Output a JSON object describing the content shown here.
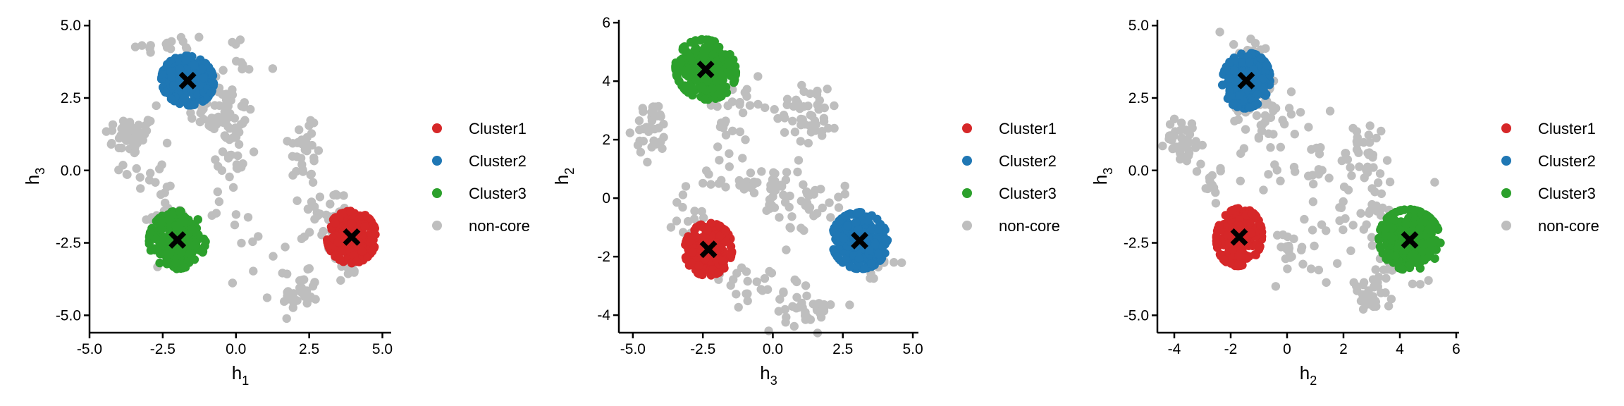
{
  "colors": {
    "Cluster1": "#d62728",
    "Cluster2": "#1f77b4",
    "Cluster3": "#2ca02c",
    "non-core": "#bebebe",
    "centroid": "#000000"
  },
  "chart_data": [
    {
      "type": "scatter",
      "xlabel": {
        "main": "h",
        "sub": "1"
      },
      "ylabel": {
        "main": "h",
        "sub": "3"
      },
      "xlim": [
        -5.0,
        5.3
      ],
      "ylim": [
        -5.6,
        5.2
      ],
      "xticks": [
        -5.0,
        -2.5,
        0.0,
        2.5,
        5.0
      ],
      "xtick_labels": [
        "-5.0",
        "-2.5",
        "0.0",
        "2.5",
        "5.0"
      ],
      "yticks": [
        -5.0,
        -2.5,
        0.0,
        2.5,
        5.0
      ],
      "ytick_labels": [
        "-5.0",
        "-2.5",
        "0.0",
        "2.5",
        "5.0"
      ],
      "legend": [
        "Cluster1",
        "Cluster2",
        "Cluster3",
        "non-core"
      ],
      "legend_position": "right",
      "clusters": [
        {
          "name": "Cluster1",
          "center": [
            3.95,
            -2.3
          ],
          "spread": [
            0.42,
            0.45
          ],
          "angle": 0,
          "n": 230
        },
        {
          "name": "Cluster2",
          "center": [
            -1.65,
            3.1
          ],
          "spread": [
            0.45,
            0.42
          ],
          "angle": -25,
          "n": 260
        },
        {
          "name": "Cluster3",
          "center": [
            -2.0,
            -2.4
          ],
          "spread": [
            0.48,
            0.5
          ],
          "angle": -20,
          "n": 280
        }
      ],
      "centroids": [
        [
          3.95,
          -2.3
        ],
        [
          -1.65,
          3.1
        ],
        [
          -2.0,
          -2.4
        ]
      ],
      "noncore_regions": [
        {
          "center": [
            -3.6,
            1.2
          ],
          "spread": [
            0.45,
            0.35
          ],
          "n": 45
        },
        {
          "center": [
            -0.5,
            2.0
          ],
          "spread": [
            0.55,
            0.5
          ],
          "n": 55
        },
        {
          "center": [
            -0.2,
            0.5
          ],
          "spread": [
            0.35,
            0.9
          ],
          "n": 30
        },
        {
          "center": [
            2.4,
            0.8
          ],
          "spread": [
            0.3,
            0.7
          ],
          "n": 30
        },
        {
          "center": [
            3.2,
            -1.5
          ],
          "spread": [
            0.45,
            0.45
          ],
          "n": 30
        },
        {
          "center": [
            2.2,
            -4.3
          ],
          "spread": [
            0.3,
            0.35
          ],
          "n": 30
        },
        {
          "center": [
            -2.6,
            -1.5
          ],
          "spread": [
            0.4,
            0.4
          ],
          "n": 20
        },
        {
          "center": [
            0.3,
            -2.5
          ],
          "spread": [
            1.2,
            1.0
          ],
          "n": 25
        },
        {
          "center": [
            -2.2,
            4.3
          ],
          "spread": [
            0.6,
            0.3
          ],
          "n": 15
        },
        {
          "center": [
            -3.0,
            0.0
          ],
          "spread": [
            0.4,
            0.4
          ],
          "n": 12
        },
        {
          "center": [
            0.0,
            3.5
          ],
          "spread": [
            0.6,
            0.5
          ],
          "n": 12
        },
        {
          "center": [
            3.8,
            -3.1
          ],
          "spread": [
            0.3,
            0.3
          ],
          "n": 14
        }
      ]
    },
    {
      "type": "scatter",
      "xlabel": {
        "main": "h",
        "sub": "3"
      },
      "ylabel": {
        "main": "h",
        "sub": "2"
      },
      "xlim": [
        -5.5,
        5.2
      ],
      "ylim": [
        -4.6,
        6.1
      ],
      "xticks": [
        -5.0,
        -2.5,
        0.0,
        2.5,
        5.0
      ],
      "xtick_labels": [
        "-5.0",
        "-2.5",
        "0.0",
        "2.5",
        "5.0"
      ],
      "yticks": [
        -4,
        -2,
        0,
        2,
        4,
        6
      ],
      "ytick_labels": [
        "-4",
        "-2",
        "0",
        "2",
        "4",
        "6"
      ],
      "legend": [
        "Cluster1",
        "Cluster2",
        "Cluster3",
        "non-core"
      ],
      "legend_position": "right",
      "clusters": [
        {
          "name": "Cluster1",
          "center": [
            -2.3,
            -1.75
          ],
          "spread": [
            0.42,
            0.45
          ],
          "angle": -15,
          "n": 230
        },
        {
          "name": "Cluster2",
          "center": [
            3.1,
            -1.45
          ],
          "spread": [
            0.5,
            0.48
          ],
          "angle": -25,
          "n": 280
        },
        {
          "name": "Cluster3",
          "center": [
            -2.4,
            4.4
          ],
          "spread": [
            0.55,
            0.5
          ],
          "angle": -30,
          "n": 290
        }
      ],
      "centroids": [
        [
          -2.3,
          -1.75
        ],
        [
          3.1,
          -1.45
        ],
        [
          -2.4,
          4.4
        ]
      ],
      "noncore_regions": [
        {
          "center": [
            -4.3,
            2.3
          ],
          "spread": [
            0.3,
            0.5
          ],
          "n": 35
        },
        {
          "center": [
            1.3,
            3.0
          ],
          "spread": [
            0.55,
            0.55
          ],
          "n": 45
        },
        {
          "center": [
            -0.5,
            0.5
          ],
          "spread": [
            1.0,
            0.4
          ],
          "n": 40
        },
        {
          "center": [
            1.2,
            -0.2
          ],
          "spread": [
            0.7,
            0.4
          ],
          "n": 35
        },
        {
          "center": [
            1.3,
            -3.8
          ],
          "spread": [
            0.45,
            0.35
          ],
          "n": 35
        },
        {
          "center": [
            -0.5,
            -2.8
          ],
          "spread": [
            0.9,
            0.4
          ],
          "n": 25
        },
        {
          "center": [
            -1.5,
            2.4
          ],
          "spread": [
            0.5,
            0.6
          ],
          "n": 20
        },
        {
          "center": [
            -3.2,
            -0.8
          ],
          "spread": [
            0.4,
            0.5
          ],
          "n": 14
        },
        {
          "center": [
            3.7,
            -2.2
          ],
          "spread": [
            0.4,
            0.35
          ],
          "n": 14
        },
        {
          "center": [
            -1.2,
            3.6
          ],
          "spread": [
            0.4,
            0.4
          ],
          "n": 10
        }
      ]
    },
    {
      "type": "scatter",
      "xlabel": {
        "main": "h",
        "sub": "2"
      },
      "ylabel": {
        "main": "h",
        "sub": "3"
      },
      "xlim": [
        -4.6,
        6.1
      ],
      "ylim": [
        -5.6,
        5.2
      ],
      "xticks": [
        -4,
        -2,
        0,
        2,
        4,
        6
      ],
      "xtick_labels": [
        "-4",
        "-2",
        "0",
        "2",
        "4",
        "6"
      ],
      "yticks": [
        -5.0,
        -2.5,
        0.0,
        2.5,
        5.0
      ],
      "ytick_labels": [
        "-5.0",
        "-2.5",
        "0.0",
        "2.5",
        "5.0"
      ],
      "legend": [
        "Cluster1",
        "Cluster2",
        "Cluster3",
        "non-core"
      ],
      "legend_position": "right",
      "clusters": [
        {
          "name": "Cluster1",
          "center": [
            -1.7,
            -2.3
          ],
          "spread": [
            0.4,
            0.5
          ],
          "angle": -10,
          "n": 230
        },
        {
          "name": "Cluster2",
          "center": [
            -1.45,
            3.1
          ],
          "spread": [
            0.42,
            0.48
          ],
          "angle": -15,
          "n": 260
        },
        {
          "name": "Cluster3",
          "center": [
            4.35,
            -2.4
          ],
          "spread": [
            0.55,
            0.52
          ],
          "angle": -25,
          "n": 290
        }
      ],
      "centroids": [
        [
          -1.7,
          -2.3
        ],
        [
          -1.45,
          3.1
        ],
        [
          4.35,
          -2.4
        ]
      ],
      "noncore_regions": [
        {
          "center": [
            -3.6,
            1.0
          ],
          "spread": [
            0.35,
            0.4
          ],
          "n": 40
        },
        {
          "center": [
            -0.8,
            2.0
          ],
          "spread": [
            0.6,
            0.6
          ],
          "n": 45
        },
        {
          "center": [
            2.8,
            0.5
          ],
          "spread": [
            0.5,
            0.7
          ],
          "n": 35
        },
        {
          "center": [
            0.6,
            0.3
          ],
          "spread": [
            0.7,
            0.6
          ],
          "n": 25
        },
        {
          "center": [
            2.7,
            -1.5
          ],
          "spread": [
            0.7,
            0.5
          ],
          "n": 30
        },
        {
          "center": [
            2.9,
            -4.4
          ],
          "spread": [
            0.35,
            0.35
          ],
          "n": 35
        },
        {
          "center": [
            0.3,
            -2.9
          ],
          "spread": [
            1.0,
            0.6
          ],
          "n": 25
        },
        {
          "center": [
            -1.3,
            4.3
          ],
          "spread": [
            0.5,
            0.3
          ],
          "n": 12
        },
        {
          "center": [
            -2.6,
            -0.6
          ],
          "spread": [
            0.4,
            0.4
          ],
          "n": 12
        },
        {
          "center": [
            4.0,
            -3.4
          ],
          "spread": [
            0.4,
            0.3
          ],
          "n": 14
        }
      ]
    }
  ]
}
